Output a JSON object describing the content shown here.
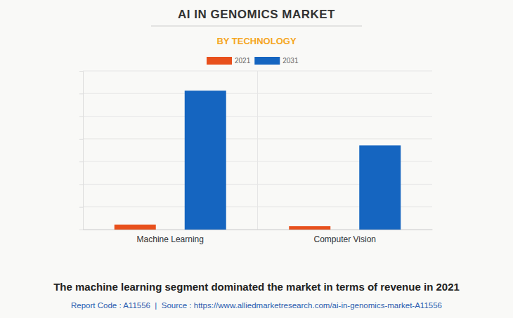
{
  "chart_data": {
    "type": "bar",
    "title": "AI IN GENOMICS MARKET",
    "subtitle": "BY TECHNOLOGY",
    "categories": [
      "Machine Learning",
      "Computer Vision"
    ],
    "series": [
      {
        "name": "2021",
        "color": "#e8501c",
        "values": [
          0.22,
          0.15
        ]
      },
      {
        "name": "2031",
        "color": "#1565c0",
        "values": [
          6.13,
          3.71
        ]
      }
    ],
    "ylim": [
      0,
      7
    ],
    "yticks": [
      0,
      1,
      2,
      3,
      4,
      5,
      6,
      7
    ],
    "grid": true,
    "tick_labels": "x",
    "caption": "The machine learning segment dominated the market in terms of revenue in 2021",
    "source": "Report Code : A11556  |  Source : https://www.alliedmarketresearch.com/ai-in-genomics-market-A11556"
  }
}
